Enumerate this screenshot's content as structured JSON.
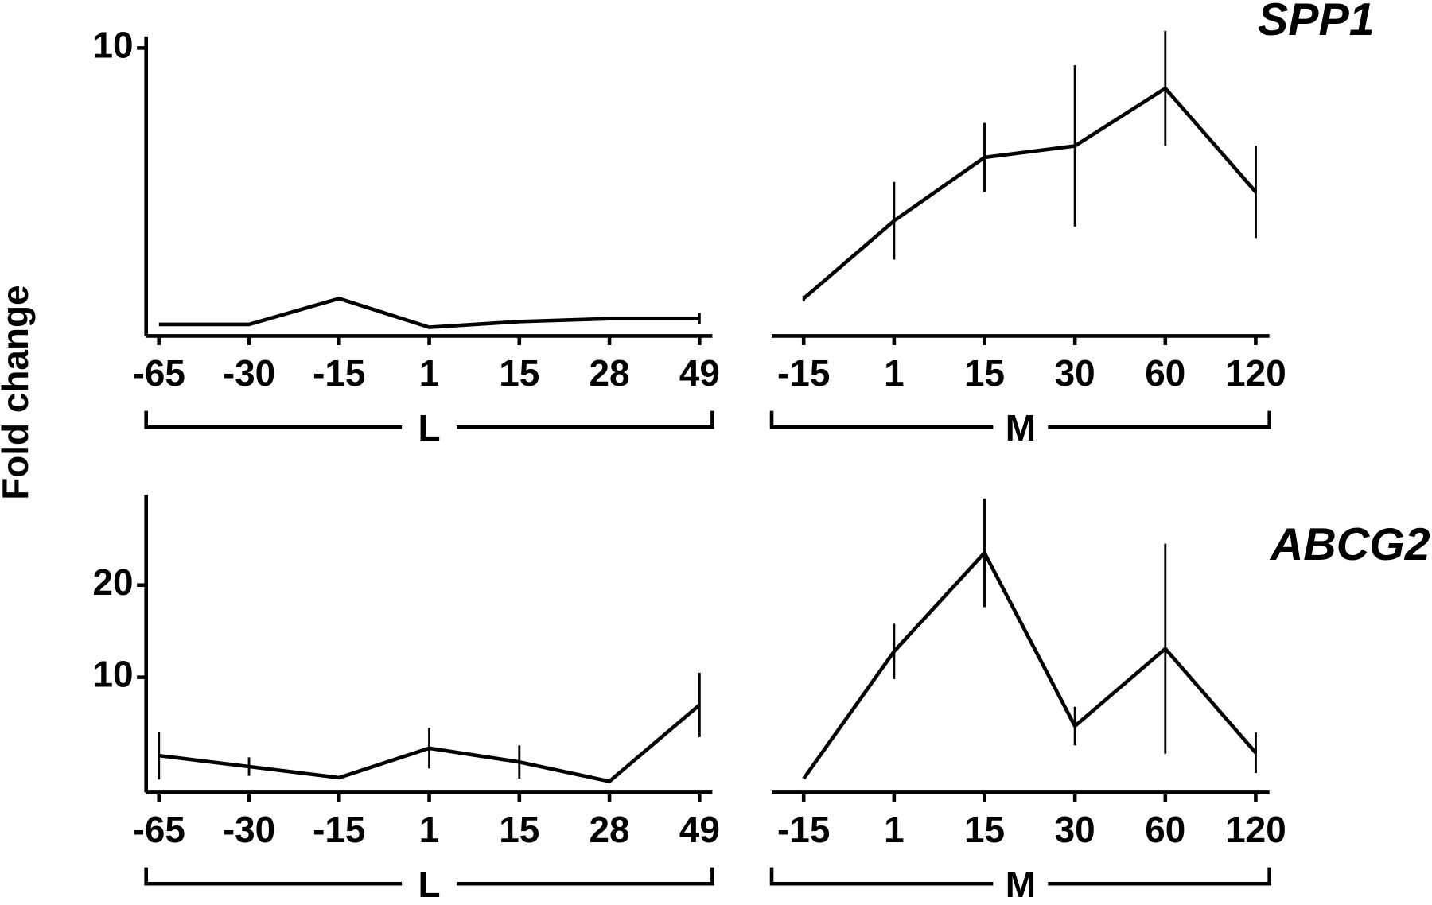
{
  "chart_data": [
    {
      "type": "line",
      "ylabel": "Fold change",
      "group": "L",
      "categories": [
        "-65",
        "-30",
        "-15",
        "1",
        "15",
        "28",
        "49"
      ],
      "series": [
        {
          "color": "#000000",
          "values": [
            0.4,
            0.4,
            1.3,
            0.3,
            0.5,
            0.6,
            0.6
          ],
          "errors": [
            null,
            null,
            null,
            null,
            null,
            null,
            0.2
          ]
        }
      ],
      "ylim": [
        0,
        10.4
      ],
      "yticks": [
        10
      ]
    },
    {
      "type": "line",
      "title": "SPP1",
      "group": "M",
      "categories": [
        "-15",
        "1",
        "15",
        "30",
        "60",
        "120"
      ],
      "series": [
        {
          "color": "#000000",
          "values": [
            1.3,
            4.0,
            6.2,
            6.6,
            8.6,
            5.0
          ],
          "errors": [
            0.1,
            1.35,
            1.2,
            2.8,
            2.0,
            1.6
          ]
        }
      ],
      "ylim": [
        0,
        10.4
      ]
    },
    {
      "type": "line",
      "group": "L",
      "categories": [
        "-65",
        "-30",
        "-15",
        "1",
        "15",
        "28",
        "49"
      ],
      "series": [
        {
          "color": "#000000",
          "values": [
            1.5,
            0.3,
            -0.9,
            2.3,
            0.8,
            -1.3,
            7.0
          ],
          "errors": [
            2.6,
            1.0,
            null,
            2.2,
            1.8,
            null,
            3.5
          ]
        }
      ],
      "ylim": [
        -2.5,
        29.8
      ],
      "yticks": [
        10,
        20
      ]
    },
    {
      "type": "line",
      "title": "ABCG2",
      "group": "M",
      "categories": [
        "-15",
        "1",
        "15",
        "30",
        "60",
        "120"
      ],
      "series": [
        {
          "color": "#000000",
          "values": [
            -1.0,
            12.8,
            23.5,
            4.7,
            13.1,
            1.8
          ],
          "errors": [
            null,
            3.0,
            5.9,
            2.1,
            11.4,
            2.2
          ]
        }
      ],
      "ylim": [
        -2.5,
        29.8
      ]
    }
  ]
}
